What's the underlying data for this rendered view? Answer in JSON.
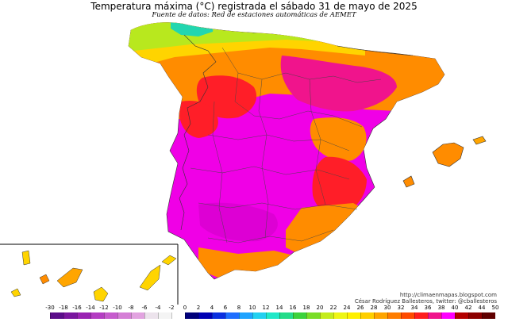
{
  "header": {
    "title": "Temperatura máxima (°C) registrada el sábado 31 de mayo de 2025",
    "subtitle": "Fuente de datos: Red de estaciones automáticas de AEMET"
  },
  "credits": {
    "url": "http://climaenmapas.blogspot.com",
    "author": "César Rodríguez Ballesteros, twitter: @cballesteros"
  },
  "legend": {
    "unit": "°C",
    "labels": [
      "-30",
      "-18",
      "-16",
      "-14",
      "-12",
      "-10",
      "-8",
      "-6",
      "-4",
      "-2",
      "0",
      "2",
      "4",
      "6",
      "8",
      "10",
      "12",
      "14",
      "16",
      "18",
      "20",
      "22",
      "24",
      "26",
      "28",
      "30",
      "32",
      "34",
      "36",
      "38",
      "40",
      "42",
      "44",
      "50"
    ],
    "colors": [
      "#5b0d8a",
      "#7a169f",
      "#9a23b3",
      "#b43dc2",
      "#c65bcd",
      "#d57fd6",
      "#e2a3e0",
      "#ece3ec",
      "#f4f4f4",
      "#ffffff",
      "#00007a",
      "#0000b4",
      "#0a2fe0",
      "#1e6eff",
      "#1fa3ff",
      "#22d0f0",
      "#1fe8c8",
      "#24dc8a",
      "#3cd23c",
      "#7add28",
      "#c4ec1c",
      "#eef614",
      "#fff000",
      "#ffcf00",
      "#ffa500",
      "#ff7d00",
      "#ff4b00",
      "#ff1e1e",
      "#f0148c",
      "#ff00ff",
      "#b40000",
      "#8c0000",
      "#600000"
    ]
  },
  "map": {
    "regions": [
      {
        "name": "cantabrian-coast-mild",
        "temperature": "18-24",
        "color": "#c4ec1c"
      },
      {
        "name": "north-plateau-warm",
        "temperature": "28-32",
        "color": "#ff7d00"
      },
      {
        "name": "ebro-valley-hot",
        "temperature": "36-38",
        "color": "#f0148c"
      },
      {
        "name": "extremadura-hot",
        "temperature": "34-36",
        "color": "#ff1e1e"
      },
      {
        "name": "guadalquivir-very-hot",
        "temperature": "38-40",
        "color": "#ff00ff"
      },
      {
        "name": "mediterranean-coast-warm",
        "temperature": "28-32",
        "color": "#ff7d00"
      }
    ]
  }
}
